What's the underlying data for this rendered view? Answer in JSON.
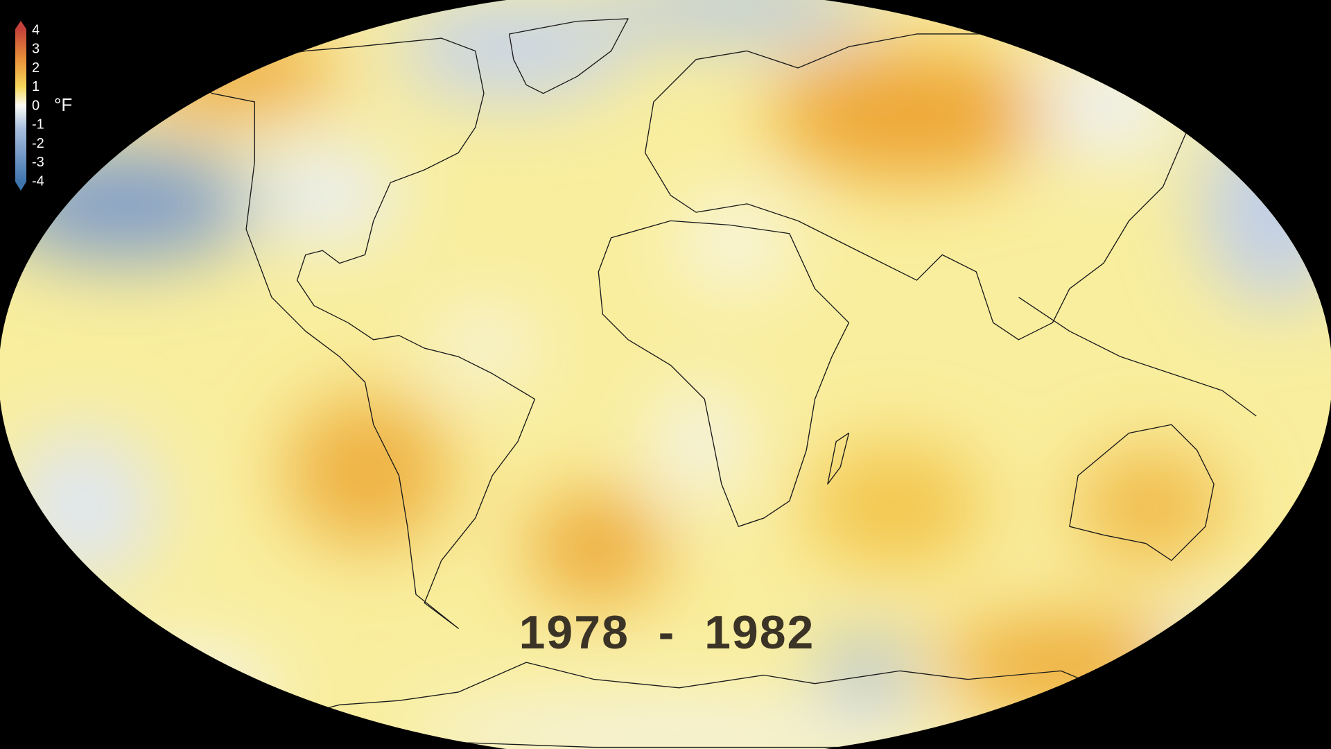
{
  "legend": {
    "ticks": [
      "4",
      "3",
      "2",
      "1",
      "0",
      "-1",
      "-2",
      "-3",
      "-4"
    ],
    "unit": "°F"
  },
  "period": "1978  -  1982"
}
